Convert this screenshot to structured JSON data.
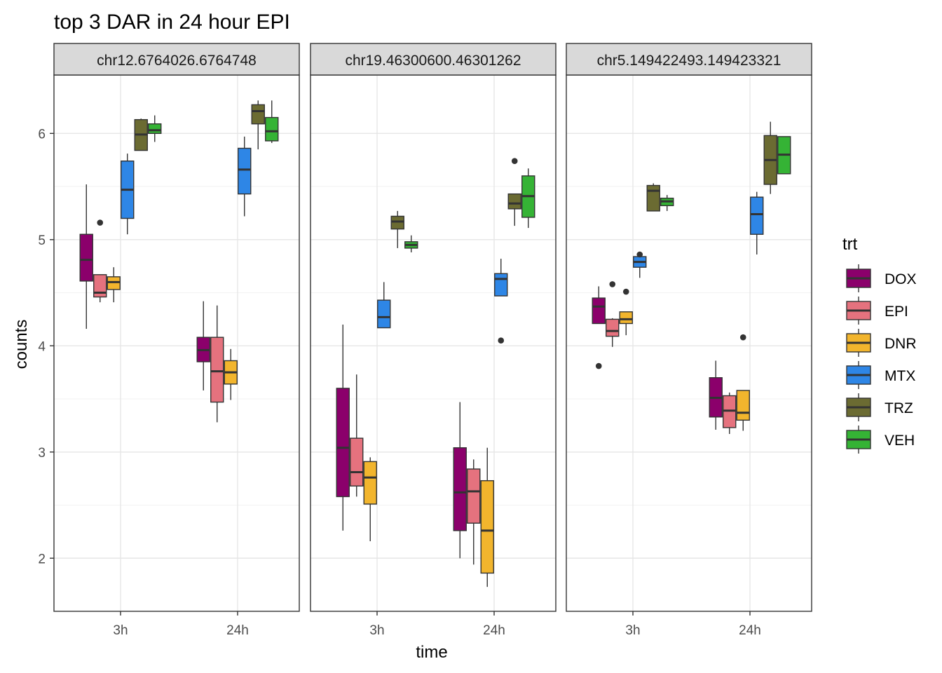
{
  "chart_data": {
    "type": "boxplot",
    "title": "top 3 DAR in 24 hour EPI",
    "xlabel": "time",
    "ylabel": "counts",
    "x_categories": [
      "3h",
      "24h"
    ],
    "y_ticks": [
      2,
      3,
      4,
      5,
      6
    ],
    "ylim": [
      1.5,
      6.55
    ],
    "grid": true,
    "legend": {
      "title": "trt",
      "position": "right",
      "items": [
        {
          "name": "DOX",
          "color": "#8B006B"
        },
        {
          "name": "EPI",
          "color": "#E5727E"
        },
        {
          "name": "DNR",
          "color": "#F2B52D"
        },
        {
          "name": "MTX",
          "color": "#2E86E6"
        },
        {
          "name": "TRZ",
          "color": "#6B6B32"
        },
        {
          "name": "VEH",
          "color": "#35B335"
        }
      ]
    },
    "facets": [
      {
        "label": "chr12.6764026.6764748",
        "groups": {
          "3h": [
            {
              "trt": "DOX",
              "min": 4.16,
              "q1": 4.61,
              "median": 4.81,
              "q3": 5.05,
              "max": 5.52,
              "outliers": []
            },
            {
              "trt": "EPI",
              "min": 4.41,
              "q1": 4.46,
              "median": 4.5,
              "q3": 4.67,
              "max": 4.67,
              "outliers": [
                5.16
              ]
            },
            {
              "trt": "DNR",
              "min": 4.41,
              "q1": 4.53,
              "median": 4.6,
              "q3": 4.65,
              "max": 4.74,
              "outliers": []
            },
            {
              "trt": "MTX",
              "min": 5.05,
              "q1": 5.2,
              "median": 5.47,
              "q3": 5.74,
              "max": 5.81,
              "outliers": []
            },
            {
              "trt": "TRZ",
              "min": 5.84,
              "q1": 5.84,
              "median": 5.99,
              "q3": 6.13,
              "max": 6.14,
              "outliers": []
            },
            {
              "trt": "VEH",
              "min": 5.92,
              "q1": 6.0,
              "median": 6.03,
              "q3": 6.09,
              "max": 6.17,
              "outliers": []
            }
          ],
          "24h": [
            {
              "trt": "DOX",
              "min": 3.58,
              "q1": 3.85,
              "median": 3.96,
              "q3": 4.08,
              "max": 4.42,
              "outliers": []
            },
            {
              "trt": "EPI",
              "min": 3.28,
              "q1": 3.47,
              "median": 3.76,
              "q3": 4.08,
              "max": 4.38,
              "outliers": []
            },
            {
              "trt": "DNR",
              "min": 3.49,
              "q1": 3.64,
              "median": 3.75,
              "q3": 3.86,
              "max": 3.97,
              "outliers": []
            },
            {
              "trt": "MTX",
              "min": 5.22,
              "q1": 5.43,
              "median": 5.66,
              "q3": 5.86,
              "max": 5.97,
              "outliers": []
            },
            {
              "trt": "TRZ",
              "min": 5.85,
              "q1": 6.09,
              "median": 6.21,
              "q3": 6.27,
              "max": 6.31,
              "outliers": []
            },
            {
              "trt": "VEH",
              "min": 5.91,
              "q1": 5.93,
              "median": 6.02,
              "q3": 6.15,
              "max": 6.31,
              "outliers": []
            }
          ]
        }
      },
      {
        "label": "chr19.46300600.46301262",
        "groups": {
          "3h": [
            {
              "trt": "DOX",
              "min": 2.26,
              "q1": 2.58,
              "median": 3.04,
              "q3": 3.6,
              "max": 4.2,
              "outliers": []
            },
            {
              "trt": "EPI",
              "min": 2.58,
              "q1": 2.68,
              "median": 2.81,
              "q3": 3.13,
              "max": 3.73,
              "outliers": []
            },
            {
              "trt": "DNR",
              "min": 2.16,
              "q1": 2.51,
              "median": 2.76,
              "q3": 2.91,
              "max": 2.95,
              "outliers": []
            },
            {
              "trt": "MTX",
              "min": 4.17,
              "q1": 4.17,
              "median": 4.27,
              "q3": 4.43,
              "max": 4.6,
              "outliers": []
            },
            {
              "trt": "TRZ",
              "min": 4.92,
              "q1": 5.1,
              "median": 5.17,
              "q3": 5.22,
              "max": 5.27,
              "outliers": []
            },
            {
              "trt": "VEH",
              "min": 4.88,
              "q1": 4.92,
              "median": 4.95,
              "q3": 4.98,
              "max": 5.04,
              "outliers": []
            }
          ],
          "24h": [
            {
              "trt": "DOX",
              "min": 2.0,
              "q1": 2.26,
              "median": 2.62,
              "q3": 3.04,
              "max": 3.47,
              "outliers": []
            },
            {
              "trt": "EPI",
              "min": 1.94,
              "q1": 2.33,
              "median": 2.63,
              "q3": 2.84,
              "max": 2.93,
              "outliers": []
            },
            {
              "trt": "DNR",
              "min": 1.73,
              "q1": 1.86,
              "median": 2.26,
              "q3": 2.73,
              "max": 3.04,
              "outliers": []
            },
            {
              "trt": "MTX",
              "min": 4.47,
              "q1": 4.47,
              "median": 4.63,
              "q3": 4.68,
              "max": 4.82,
              "outliers": [
                4.05
              ]
            },
            {
              "trt": "TRZ",
              "min": 5.13,
              "q1": 5.29,
              "median": 5.34,
              "q3": 5.43,
              "max": 5.43,
              "outliers": [
                5.74
              ]
            },
            {
              "trt": "VEH",
              "min": 5.11,
              "q1": 5.21,
              "median": 5.41,
              "q3": 5.6,
              "max": 5.67,
              "outliers": []
            }
          ]
        }
      },
      {
        "label": "chr5.149422493.149423321",
        "groups": {
          "3h": [
            {
              "trt": "DOX",
              "min": 4.21,
              "q1": 4.21,
              "median": 4.37,
              "q3": 4.45,
              "max": 4.56,
              "outliers": [
                3.81
              ]
            },
            {
              "trt": "EPI",
              "min": 3.99,
              "q1": 4.09,
              "median": 4.14,
              "q3": 4.25,
              "max": 4.26,
              "outliers": [
                4.58
              ]
            },
            {
              "trt": "DNR",
              "min": 4.1,
              "q1": 4.21,
              "median": 4.25,
              "q3": 4.32,
              "max": 4.32,
              "outliers": [
                4.51
              ]
            },
            {
              "trt": "MTX",
              "min": 4.64,
              "q1": 4.74,
              "median": 4.79,
              "q3": 4.84,
              "max": 4.86,
              "outliers": [
                4.86
              ]
            },
            {
              "trt": "TRZ",
              "min": 5.27,
              "q1": 5.27,
              "median": 5.46,
              "q3": 5.51,
              "max": 5.53,
              "outliers": []
            },
            {
              "trt": "VEH",
              "min": 5.27,
              "q1": 5.32,
              "median": 5.36,
              "q3": 5.39,
              "max": 5.42,
              "outliers": []
            }
          ],
          "24h": [
            {
              "trt": "DOX",
              "min": 3.21,
              "q1": 3.33,
              "median": 3.51,
              "q3": 3.7,
              "max": 3.86,
              "outliers": []
            },
            {
              "trt": "EPI",
              "min": 3.17,
              "q1": 3.23,
              "median": 3.39,
              "q3": 3.53,
              "max": 3.56,
              "outliers": []
            },
            {
              "trt": "DNR",
              "min": 3.2,
              "q1": 3.3,
              "median": 3.37,
              "q3": 3.58,
              "max": 3.58,
              "outliers": [
                4.08
              ]
            },
            {
              "trt": "MTX",
              "min": 4.86,
              "q1": 5.05,
              "median": 5.24,
              "q3": 5.4,
              "max": 5.45,
              "outliers": []
            },
            {
              "trt": "TRZ",
              "min": 5.43,
              "q1": 5.52,
              "median": 5.75,
              "q3": 5.98,
              "max": 6.11,
              "outliers": []
            },
            {
              "trt": "VEH",
              "min": 5.62,
              "q1": 5.62,
              "median": 5.8,
              "q3": 5.97,
              "max": 5.97,
              "outliers": []
            }
          ]
        }
      }
    ]
  }
}
